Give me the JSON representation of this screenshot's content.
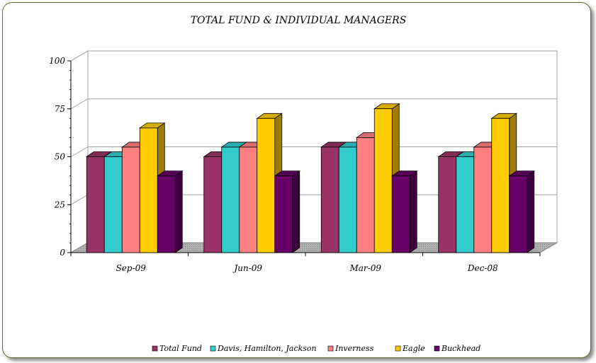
{
  "chart_data": {
    "type": "bar",
    "title": "TOTAL FUND & INDIVIDUAL MANAGERS",
    "xlabel": "",
    "ylabel": "",
    "categories": [
      "Sep-09",
      "Jun-09",
      "Mar-09",
      "Dec-08"
    ],
    "ylim": [
      0,
      100
    ],
    "yticks": [
      0,
      25,
      50,
      75,
      100
    ],
    "grid": true,
    "legend_position": "bottom",
    "style": "3d-clustered-bar",
    "series": [
      {
        "name": "Total Fund",
        "values": [
          50,
          50,
          55,
          50
        ],
        "color": "#993366"
      },
      {
        "name": "Davis, Hamilton, Jackson",
        "values": [
          50,
          55,
          55,
          50
        ],
        "color": "#33CCCC"
      },
      {
        "name": "Inverness",
        "values": [
          55,
          55,
          60,
          55
        ],
        "color": "#FF8080"
      },
      {
        "name": "Eagle",
        "values": [
          65,
          70,
          75,
          70
        ],
        "color": "#FFCC00"
      },
      {
        "name": "Buckhead",
        "values": [
          40,
          40,
          40,
          40
        ],
        "color": "#660066"
      }
    ]
  }
}
